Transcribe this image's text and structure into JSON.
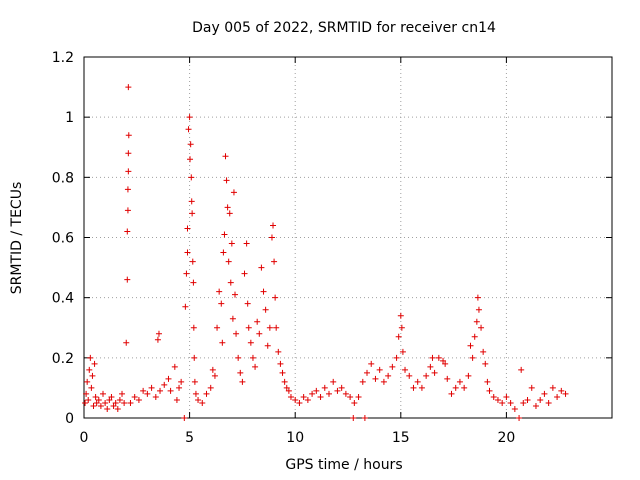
{
  "chart_data": {
    "type": "scatter",
    "title": "Day 005 of 2022, SRMTID for receiver cn14",
    "xlabel": "GPS time / hours",
    "ylabel": "SRMTID / TECUs",
    "xlim": [
      0,
      25
    ],
    "ylim": [
      0,
      1.2
    ],
    "x_ticks": [
      0,
      5,
      10,
      15,
      20
    ],
    "y_ticks": [
      0,
      0.2,
      0.4,
      0.6,
      0.8,
      1,
      1.2
    ],
    "x_tick_labels": [
      "0",
      "5",
      "10",
      "15",
      "20"
    ],
    "y_tick_labels": [
      "0",
      "0.2",
      "0.4",
      "0.6",
      "0.8",
      "1",
      "1.2"
    ],
    "grid": true,
    "marker": "+",
    "color": "#e00000",
    "series": [
      {
        "name": "cn14",
        "points": [
          [
            0.05,
            0.05
          ],
          [
            0.1,
            0.08
          ],
          [
            0.15,
            0.12
          ],
          [
            0.2,
            0.06
          ],
          [
            0.25,
            0.16
          ],
          [
            0.3,
            0.2
          ],
          [
            0.35,
            0.1
          ],
          [
            0.4,
            0.14
          ],
          [
            0.45,
            0.04
          ],
          [
            0.5,
            0.18
          ],
          [
            0.55,
            0.07
          ],
          [
            0.6,
            0.05
          ],
          [
            0.7,
            0.06
          ],
          [
            0.8,
            0.04
          ],
          [
            0.9,
            0.08
          ],
          [
            1.0,
            0.05
          ],
          [
            1.1,
            0.03
          ],
          [
            1.2,
            0.06
          ],
          [
            1.3,
            0.07
          ],
          [
            1.4,
            0.04
          ],
          [
            1.5,
            0.05
          ],
          [
            1.6,
            0.03
          ],
          [
            1.7,
            0.06
          ],
          [
            1.8,
            0.08
          ],
          [
            1.9,
            0.05
          ],
          [
            2.0,
            0.25
          ],
          [
            2.05,
            0.46
          ],
          [
            2.05,
            0.62
          ],
          [
            2.08,
            0.69
          ],
          [
            2.08,
            0.76
          ],
          [
            2.1,
            0.82
          ],
          [
            2.1,
            0.88
          ],
          [
            2.12,
            0.94
          ],
          [
            2.1,
            1.1
          ],
          [
            2.2,
            0.05
          ],
          [
            2.4,
            0.07
          ],
          [
            2.6,
            0.06
          ],
          [
            2.8,
            0.09
          ],
          [
            3.0,
            0.08
          ],
          [
            3.2,
            0.1
          ],
          [
            3.4,
            0.07
          ],
          [
            3.5,
            0.26
          ],
          [
            3.55,
            0.28
          ],
          [
            3.6,
            0.09
          ],
          [
            3.8,
            0.11
          ],
          [
            4.0,
            0.13
          ],
          [
            4.1,
            0.09
          ],
          [
            4.3,
            0.17
          ],
          [
            4.4,
            0.06
          ],
          [
            4.5,
            0.1
          ],
          [
            4.6,
            0.12
          ],
          [
            4.75,
            0.0
          ],
          [
            4.8,
            0.37
          ],
          [
            4.85,
            0.48
          ],
          [
            4.9,
            0.55
          ],
          [
            4.9,
            0.63
          ],
          [
            4.95,
            0.96
          ],
          [
            5.0,
            1.0
          ],
          [
            5.02,
            0.86
          ],
          [
            5.05,
            0.91
          ],
          [
            5.08,
            0.8
          ],
          [
            5.1,
            0.72
          ],
          [
            5.12,
            0.68
          ],
          [
            5.15,
            0.52
          ],
          [
            5.18,
            0.45
          ],
          [
            5.2,
            0.3
          ],
          [
            5.22,
            0.2
          ],
          [
            5.25,
            0.12
          ],
          [
            5.3,
            0.08
          ],
          [
            5.4,
            0.06
          ],
          [
            5.6,
            0.05
          ],
          [
            5.8,
            0.08
          ],
          [
            6.0,
            0.1
          ],
          [
            6.1,
            0.16
          ],
          [
            6.2,
            0.14
          ],
          [
            6.3,
            0.3
          ],
          [
            6.4,
            0.42
          ],
          [
            6.5,
            0.38
          ],
          [
            6.55,
            0.25
          ],
          [
            6.6,
            0.55
          ],
          [
            6.65,
            0.61
          ],
          [
            6.7,
            0.87
          ],
          [
            6.75,
            0.79
          ],
          [
            6.8,
            0.7
          ],
          [
            6.85,
            0.52
          ],
          [
            6.9,
            0.68
          ],
          [
            6.95,
            0.45
          ],
          [
            7.0,
            0.58
          ],
          [
            7.05,
            0.33
          ],
          [
            7.1,
            0.75
          ],
          [
            7.15,
            0.41
          ],
          [
            7.2,
            0.28
          ],
          [
            7.3,
            0.2
          ],
          [
            7.4,
            0.15
          ],
          [
            7.5,
            0.12
          ],
          [
            7.6,
            0.48
          ],
          [
            7.7,
            0.58
          ],
          [
            7.75,
            0.38
          ],
          [
            7.8,
            0.3
          ],
          [
            7.9,
            0.25
          ],
          [
            8.0,
            0.2
          ],
          [
            8.1,
            0.17
          ],
          [
            8.2,
            0.32
          ],
          [
            8.3,
            0.28
          ],
          [
            8.4,
            0.5
          ],
          [
            8.5,
            0.42
          ],
          [
            8.6,
            0.36
          ],
          [
            8.7,
            0.24
          ],
          [
            8.8,
            0.3
          ],
          [
            8.9,
            0.6
          ],
          [
            8.95,
            0.64
          ],
          [
            9.0,
            0.52
          ],
          [
            9.05,
            0.4
          ],
          [
            9.1,
            0.3
          ],
          [
            9.2,
            0.22
          ],
          [
            9.3,
            0.18
          ],
          [
            9.4,
            0.15
          ],
          [
            9.5,
            0.12
          ],
          [
            9.6,
            0.1
          ],
          [
            9.7,
            0.09
          ],
          [
            9.8,
            0.07
          ],
          [
            10.0,
            0.06
          ],
          [
            10.2,
            0.05
          ],
          [
            10.4,
            0.07
          ],
          [
            10.6,
            0.06
          ],
          [
            10.8,
            0.08
          ],
          [
            11.0,
            0.09
          ],
          [
            11.2,
            0.07
          ],
          [
            11.4,
            0.1
          ],
          [
            11.6,
            0.08
          ],
          [
            11.8,
            0.12
          ],
          [
            12.0,
            0.09
          ],
          [
            12.2,
            0.1
          ],
          [
            12.4,
            0.08
          ],
          [
            12.6,
            0.07
          ],
          [
            12.75,
            0.0
          ],
          [
            12.8,
            0.05
          ],
          [
            13.0,
            0.07
          ],
          [
            13.2,
            0.12
          ],
          [
            13.3,
            0.0
          ],
          [
            13.4,
            0.15
          ],
          [
            13.6,
            0.18
          ],
          [
            13.8,
            0.13
          ],
          [
            14.0,
            0.16
          ],
          [
            14.2,
            0.12
          ],
          [
            14.4,
            0.14
          ],
          [
            14.6,
            0.17
          ],
          [
            14.8,
            0.2
          ],
          [
            14.9,
            0.27
          ],
          [
            15.0,
            0.34
          ],
          [
            15.05,
            0.3
          ],
          [
            15.1,
            0.22
          ],
          [
            15.2,
            0.16
          ],
          [
            15.4,
            0.14
          ],
          [
            15.6,
            0.1
          ],
          [
            15.8,
            0.12
          ],
          [
            16.0,
            0.1
          ],
          [
            16.2,
            0.14
          ],
          [
            16.4,
            0.17
          ],
          [
            16.5,
            0.2
          ],
          [
            16.6,
            0.15
          ],
          [
            16.8,
            0.2
          ],
          [
            17.0,
            0.19
          ],
          [
            17.1,
            0.18
          ],
          [
            17.2,
            0.13
          ],
          [
            17.4,
            0.08
          ],
          [
            17.6,
            0.1
          ],
          [
            17.8,
            0.12
          ],
          [
            18.0,
            0.1
          ],
          [
            18.2,
            0.14
          ],
          [
            18.3,
            0.24
          ],
          [
            18.4,
            0.2
          ],
          [
            18.5,
            0.27
          ],
          [
            18.6,
            0.32
          ],
          [
            18.65,
            0.4
          ],
          [
            18.7,
            0.36
          ],
          [
            18.8,
            0.3
          ],
          [
            18.9,
            0.22
          ],
          [
            19.0,
            0.18
          ],
          [
            19.1,
            0.12
          ],
          [
            19.2,
            0.09
          ],
          [
            19.4,
            0.07
          ],
          [
            19.6,
            0.06
          ],
          [
            19.8,
            0.05
          ],
          [
            20.0,
            0.07
          ],
          [
            20.2,
            0.05
          ],
          [
            20.4,
            0.03
          ],
          [
            20.6,
            0.0
          ],
          [
            20.7,
            0.16
          ],
          [
            20.8,
            0.05
          ],
          [
            21.0,
            0.06
          ],
          [
            21.2,
            0.1
          ],
          [
            21.4,
            0.04
          ],
          [
            21.6,
            0.06
          ],
          [
            21.8,
            0.08
          ],
          [
            22.0,
            0.05
          ],
          [
            22.2,
            0.1
          ],
          [
            22.4,
            0.07
          ],
          [
            22.6,
            0.09
          ],
          [
            22.8,
            0.08
          ]
        ]
      }
    ]
  }
}
